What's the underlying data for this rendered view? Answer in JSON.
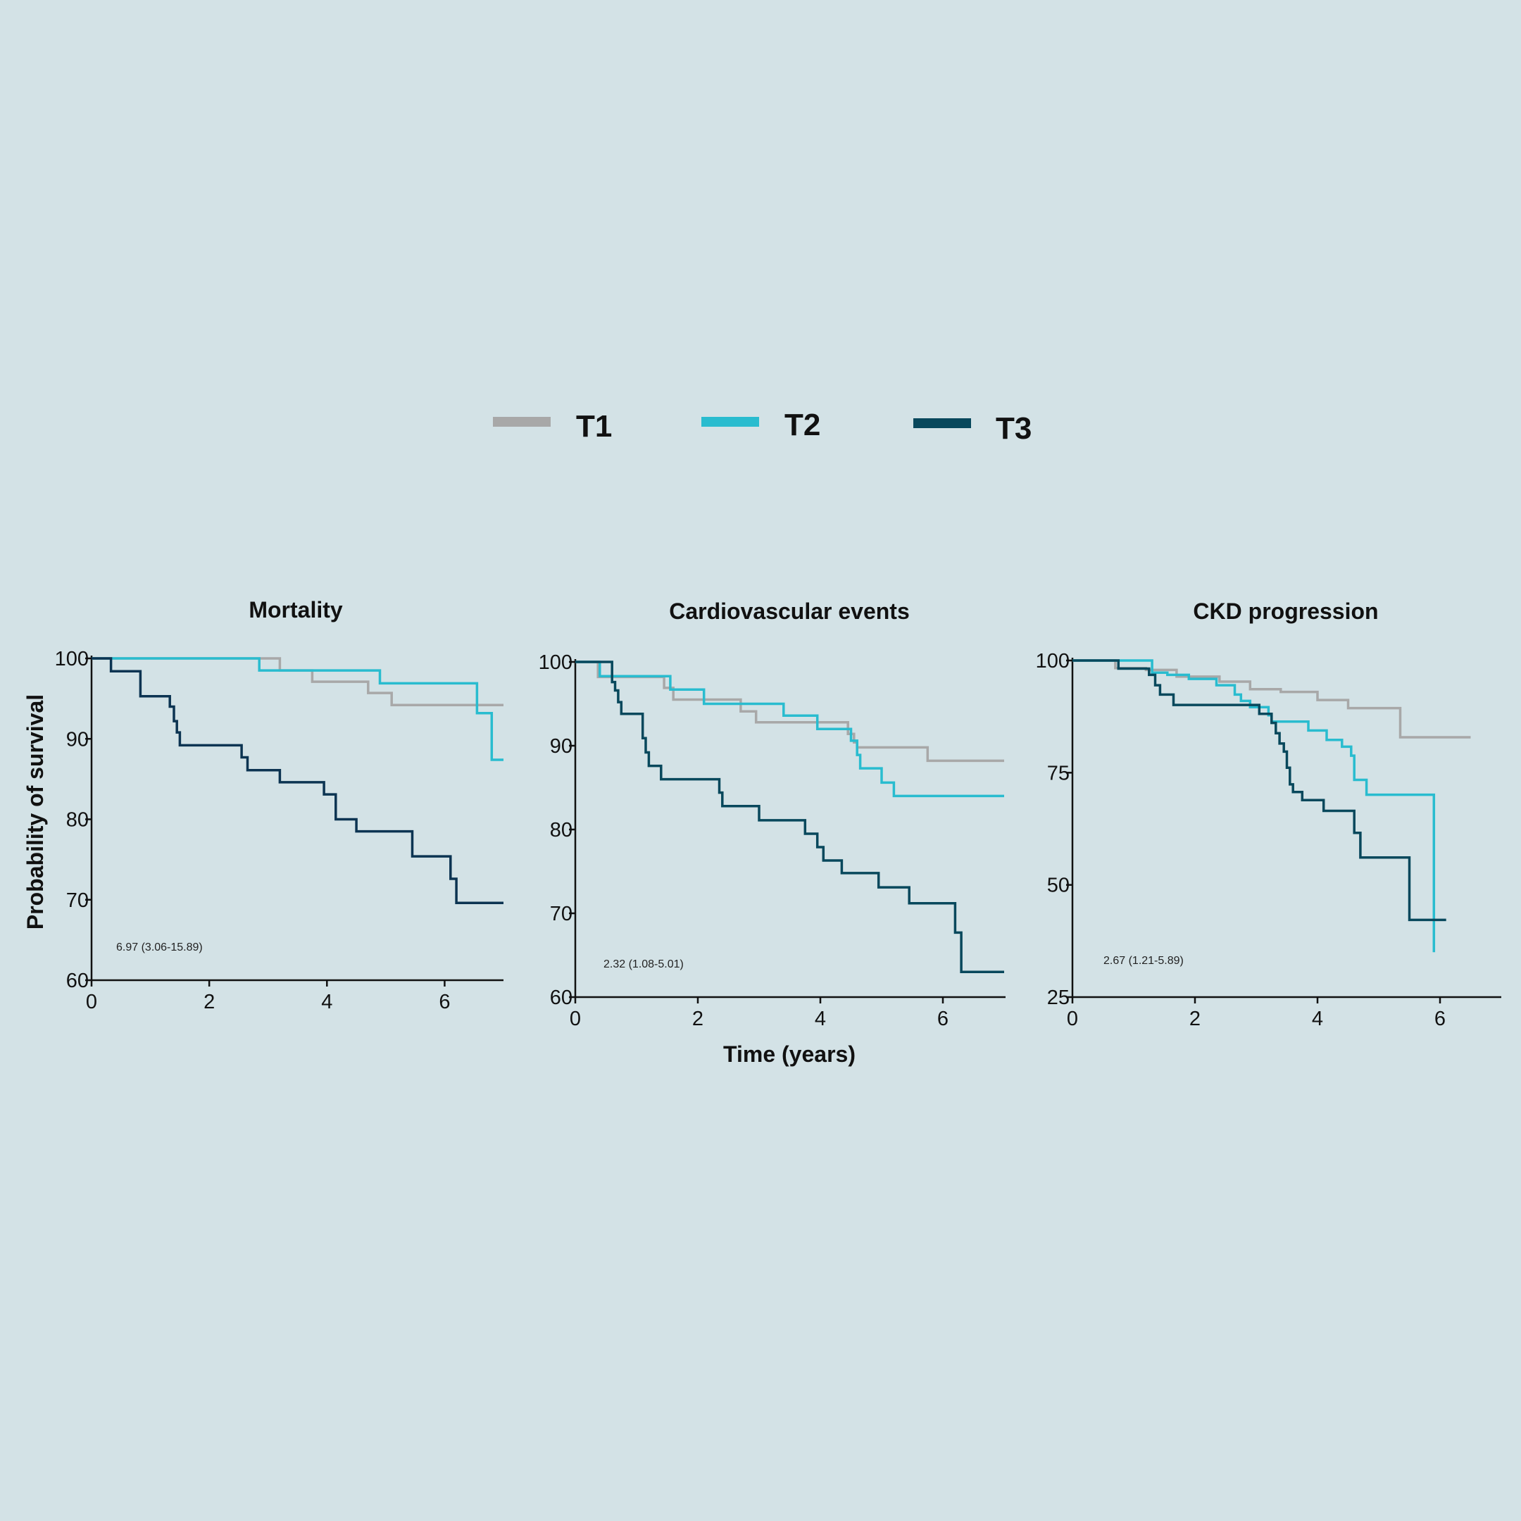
{
  "legend": {
    "items": [
      {
        "label": "T1",
        "color": "#a8a8a8"
      },
      {
        "label": "T2",
        "color": "#29bccf"
      },
      {
        "label": "T3",
        "color": "#08485c"
      }
    ]
  },
  "ylabel": "Probability of survival",
  "xlabel": "Time (years)",
  "chart_data": [
    {
      "type": "line",
      "step": true,
      "title": "Mortality",
      "ylabel": "Probability of survival",
      "xlabel": "",
      "xlim": [
        0,
        7
      ],
      "ylim": [
        60,
        100
      ],
      "xticks": [
        0,
        2,
        4,
        6
      ],
      "yticks": [
        60,
        70,
        80,
        90,
        100
      ],
      "annotation": "6.97 (3.06-15.89)",
      "series": [
        {
          "name": "T1",
          "color": "#a8a8a8",
          "x": [
            0,
            3.2,
            3.75,
            4.7,
            5.1,
            7.0
          ],
          "y": [
            100,
            98.5,
            97.1,
            95.7,
            94.2,
            94.2
          ]
        },
        {
          "name": "T2",
          "color": "#29bccf",
          "x": [
            0,
            2.85,
            4.9,
            6.55,
            6.8,
            7.0
          ],
          "y": [
            100,
            98.5,
            96.9,
            93.2,
            87.4,
            87.4
          ]
        },
        {
          "name": "T3",
          "color": "#0c3452",
          "x": [
            0,
            0.33,
            0.83,
            1.33,
            1.4,
            1.45,
            1.5,
            2.55,
            2.65,
            3.2,
            3.95,
            4.15,
            4.5,
            5.45,
            6.1,
            6.2,
            7.0
          ],
          "y": [
            100,
            98.4,
            95.3,
            94.0,
            92.2,
            90.8,
            89.2,
            87.7,
            86.1,
            84.6,
            83.1,
            80.0,
            78.5,
            75.4,
            72.6,
            69.6,
            69.6
          ]
        }
      ]
    },
    {
      "type": "line",
      "step": true,
      "title": "Cardiovascular events",
      "ylabel": "",
      "xlabel": "Time (years)",
      "xlim": [
        0,
        7
      ],
      "ylim": [
        60,
        100
      ],
      "xticks": [
        0,
        2,
        4,
        6
      ],
      "yticks": [
        60,
        70,
        80,
        90,
        100
      ],
      "annotation": "2.32 (1.08-5.01)",
      "series": [
        {
          "name": "T1",
          "color": "#a8a8a8",
          "x": [
            0,
            0.37,
            1.45,
            1.6,
            2.7,
            2.95,
            4.45,
            4.55,
            4.6,
            5.75,
            7.0
          ],
          "y": [
            100,
            98.2,
            96.9,
            95.5,
            94.1,
            92.8,
            91.4,
            90.4,
            89.8,
            88.2,
            88.2
          ]
        },
        {
          "name": "T2",
          "color": "#29bccf",
          "x": [
            0,
            0.4,
            1.55,
            2.1,
            3.4,
            3.95,
            4.5,
            4.6,
            4.65,
            5.0,
            5.2,
            7.0
          ],
          "y": [
            100,
            98.3,
            96.7,
            95.0,
            93.6,
            92.0,
            90.6,
            88.9,
            87.3,
            85.6,
            84.0,
            84.0
          ]
        },
        {
          "name": "T3",
          "color": "#08485c",
          "x": [
            0,
            0.6,
            0.65,
            0.7,
            0.75,
            0.85,
            1.1,
            1.15,
            1.2,
            1.4,
            2.35,
            2.4,
            3.0,
            3.75,
            3.95,
            4.05,
            4.35,
            4.95,
            5.45,
            6.2,
            6.3,
            7.0
          ],
          "y": [
            100,
            97.6,
            96.6,
            95.2,
            93.8,
            93.8,
            90.9,
            89.2,
            87.6,
            86.0,
            84.4,
            82.8,
            81.1,
            79.5,
            77.9,
            76.3,
            74.8,
            73.1,
            71.2,
            67.7,
            63.0,
            63.0
          ]
        }
      ]
    },
    {
      "type": "line",
      "step": true,
      "title": "CKD progression",
      "ylabel": "",
      "xlabel": "",
      "xlim": [
        0,
        7
      ],
      "ylim": [
        25,
        100
      ],
      "xticks": [
        0,
        2,
        4,
        6
      ],
      "yticks": [
        25,
        50,
        75,
        100
      ],
      "annotation": "2.67 (1.21-5.89)",
      "series": [
        {
          "name": "T1",
          "color": "#a8a8a8",
          "x": [
            0,
            0.7,
            1.2,
            1.7,
            2.4,
            2.9,
            3.4,
            4.0,
            4.5,
            5.35,
            6.5
          ],
          "y": [
            100,
            98.3,
            97.9,
            96.4,
            95.3,
            93.6,
            93.0,
            91.2,
            89.4,
            82.9,
            82.9
          ]
        },
        {
          "name": "T2",
          "color": "#29bccf",
          "x": [
            0,
            1.3,
            1.55,
            1.9,
            2.35,
            2.65,
            2.75,
            2.9,
            3.2,
            3.25,
            3.85,
            4.15,
            4.4,
            4.55,
            4.6,
            4.8,
            5.9,
            5.9
          ],
          "y": [
            100,
            97.3,
            96.8,
            95.9,
            94.5,
            92.4,
            91.0,
            89.6,
            87.8,
            86.4,
            84.4,
            82.3,
            80.8,
            78.8,
            73.4,
            70.1,
            70.1,
            35.0
          ]
        },
        {
          "name": "T3",
          "color": "#08485c",
          "x": [
            0,
            0.75,
            1.25,
            1.35,
            1.43,
            1.65,
            2.15,
            3.05,
            3.25,
            3.32,
            3.38,
            3.45,
            3.5,
            3.55,
            3.6,
            3.75,
            4.1,
            4.6,
            4.7,
            5.5,
            6.1
          ],
          "y": [
            100,
            98.2,
            96.8,
            94.5,
            92.4,
            90.1,
            90.1,
            88.1,
            86.1,
            83.8,
            81.5,
            79.7,
            76.1,
            72.4,
            70.7,
            68.9,
            66.5,
            61.6,
            56.1,
            42.2,
            42.2
          ]
        }
      ]
    }
  ]
}
